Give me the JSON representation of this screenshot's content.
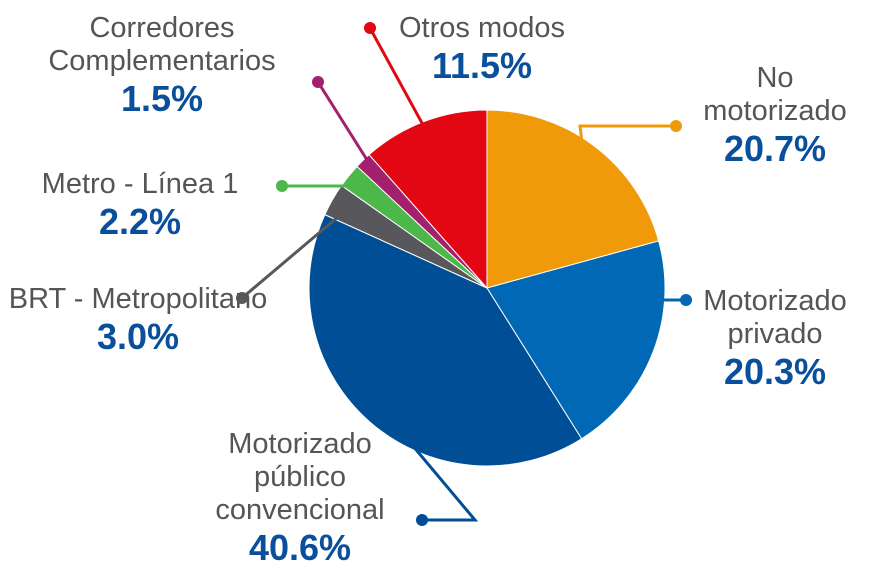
{
  "chart_data": {
    "type": "pie",
    "categories": [
      "No motorizado",
      "Motorizado privado",
      "Motorizado público convencional",
      "BRT - Metropolitano",
      "Metro - Línea 1",
      "Corredores Complementarios",
      "Otros modos"
    ],
    "values": [
      20.7,
      20.3,
      40.6,
      3.0,
      2.2,
      1.5,
      11.5
    ],
    "value_labels": [
      "20.7%",
      "20.3%",
      "40.6%",
      "3.0%",
      "2.2%",
      "1.5%",
      "11.5%"
    ],
    "colors": [
      "#f09a0a",
      "#0068b4",
      "#004e96",
      "#58585c",
      "#4cb84a",
      "#a3206e",
      "#e30613"
    ]
  }
}
